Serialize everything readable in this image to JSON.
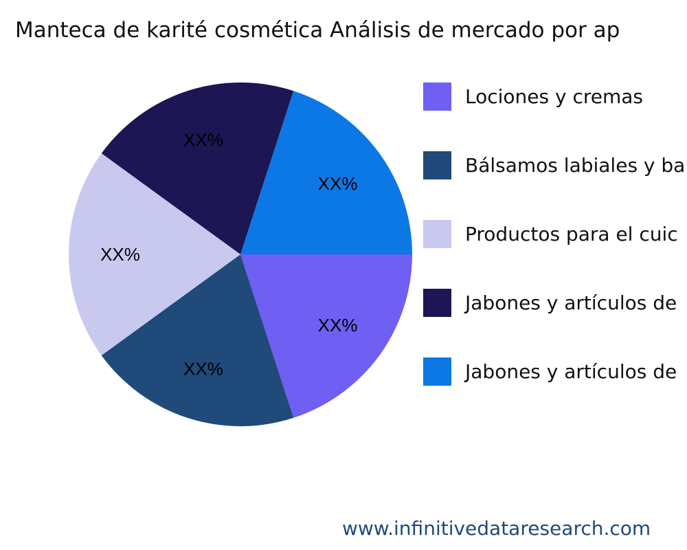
{
  "chart_data": {
    "type": "pie",
    "title": "Manteca de karité cosmética Análisis de mercado por ap",
    "categories": [
      "Lociones y cremas",
      "Bálsamos labiales y ba",
      "Productos para el cuic",
      "Jabones y artículos de",
      "Jabones y artículos de"
    ],
    "values": [
      20,
      20,
      20,
      20,
      20
    ],
    "data_labels": [
      "XX%",
      "XX%",
      "XX%",
      "XX%",
      "XX%"
    ],
    "colors": [
      "#6f5ff2",
      "#1f4a7a",
      "#c9c9f0",
      "#1c1654",
      "#0b78e6"
    ],
    "legend_placement": "right",
    "direction": "clockwise",
    "start_angle": "3 o'clock"
  },
  "watermark": "www.infinitivedataresearch.com"
}
